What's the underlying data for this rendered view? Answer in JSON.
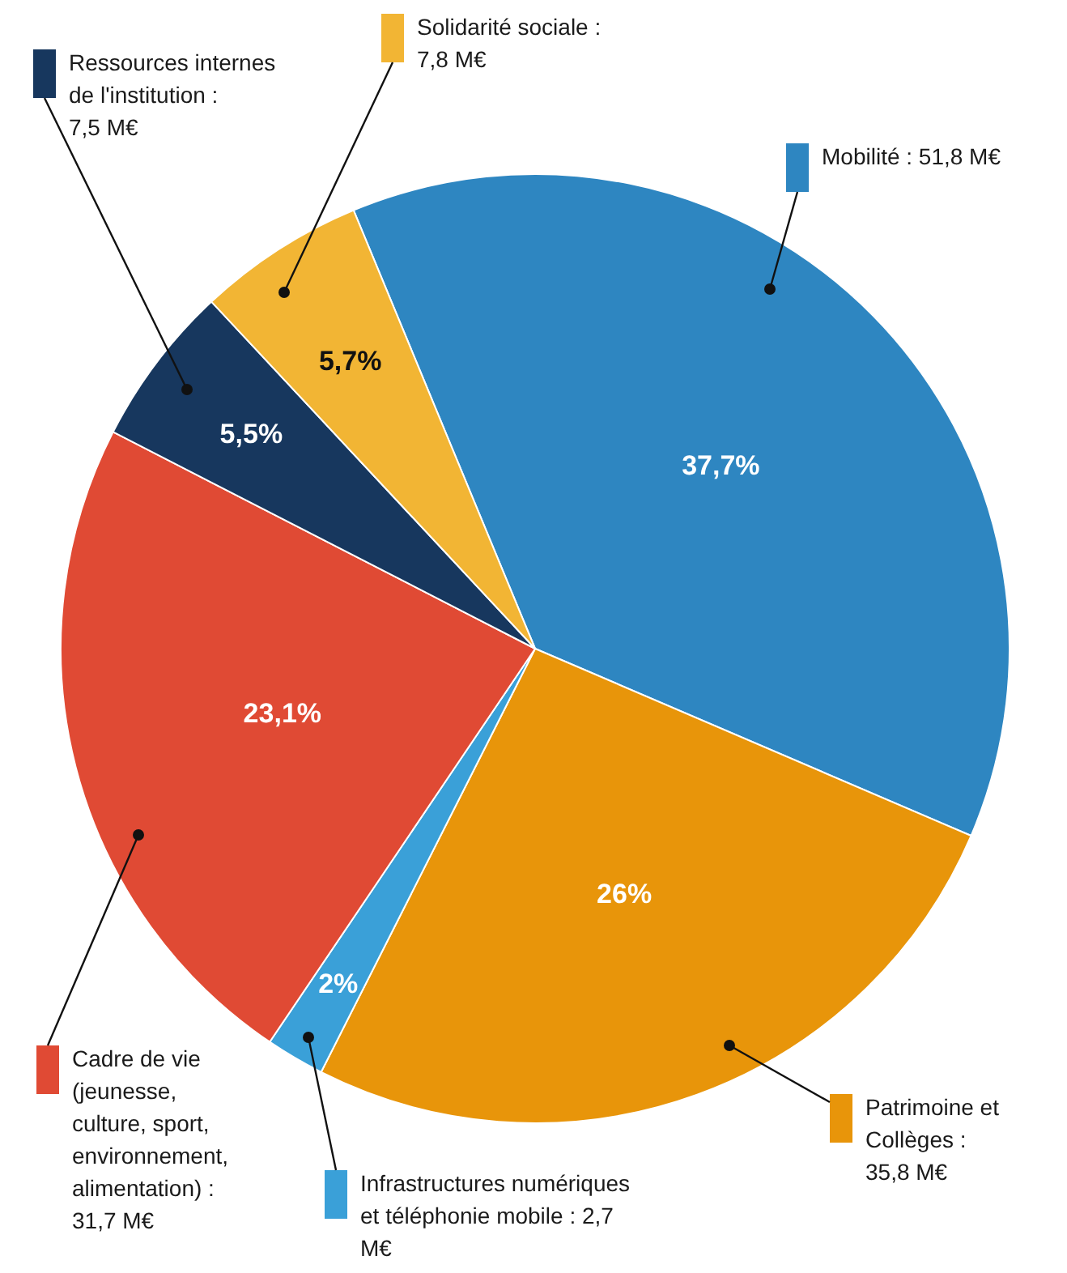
{
  "chart_data": {
    "type": "pie",
    "categories": [
      "Mobilité : 51,8 M€",
      "Patrimoine et Collèges : 35,8 M€",
      "Infrastructures numériques et téléphonie mobile : 2,7 M€",
      "Cadre de vie (jeunesse, culture, sport, environnement, alimentation) : 31,7 M€",
      "Ressources internes de l'institution : 7,5 M€",
      "Solidarité sociale : 7,8 M€"
    ],
    "values": [
      37.7,
      26,
      2,
      23.1,
      5.5,
      5.7
    ],
    "value_labels": [
      "37,7%",
      "26%",
      "2%",
      "23,1%",
      "5,5%",
      "5,7%"
    ],
    "legend": "right",
    "colors": [
      "#2e86c1",
      "#e8950a",
      "#3aa0d8",
      "#e04a34",
      "#17375e",
      "#f2b534"
    ]
  }
}
